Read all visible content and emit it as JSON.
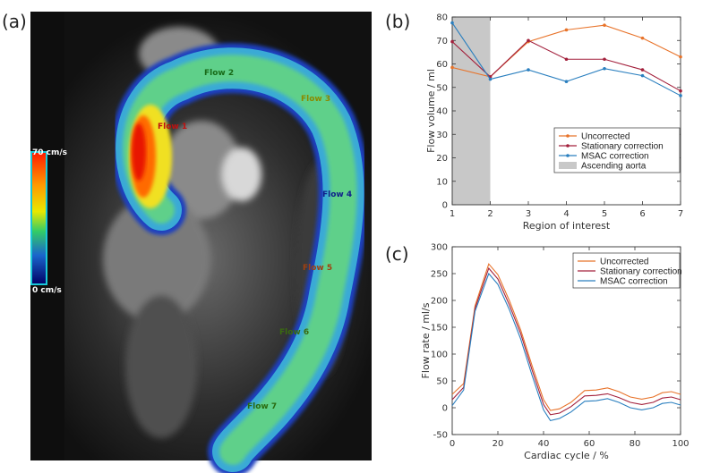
{
  "panel_labels": {
    "a": "(a)",
    "b": "(b)",
    "c": "(c)"
  },
  "mri": {
    "scale_max": "70 cm/s",
    "scale_min": "0 cm/s",
    "flow_labels": [
      "Flow 1",
      "Flow 2",
      "Flow 3",
      "Flow 4",
      "Flow 5",
      "Flow 6",
      "Flow 7"
    ]
  },
  "colors": {
    "uncorrected": "#e8732a",
    "stationary": "#a3203c",
    "msac": "#2a7fbf",
    "ascending": "#c8c8c8"
  },
  "chart_data": [
    {
      "type": "line",
      "panel": "b",
      "xlabel": "Region of interest",
      "ylabel": "Flow volume / ml",
      "xlim": [
        1,
        7
      ],
      "ylim": [
        0,
        80
      ],
      "x": [
        1,
        2,
        3,
        4,
        5,
        6,
        7
      ],
      "xticks": [
        1,
        2,
        3,
        4,
        5,
        6,
        7
      ],
      "yticks": [
        0,
        10,
        20,
        30,
        40,
        50,
        60,
        70,
        80
      ],
      "shaded_region": {
        "name": "Ascending aorta",
        "x": [
          1,
          2
        ]
      },
      "legend": "center-right",
      "series": [
        {
          "name": "Uncorrected",
          "values": [
            58.5,
            54.5,
            69.5,
            74.5,
            76.5,
            71,
            63
          ]
        },
        {
          "name": "Stationary correction",
          "values": [
            69.5,
            54.5,
            70,
            62,
            62,
            57.5,
            48.5
          ]
        },
        {
          "name": "MSAC correction",
          "values": [
            77.5,
            53.5,
            57.5,
            52.5,
            58,
            55,
            46.5
          ]
        }
      ]
    },
    {
      "type": "line",
      "panel": "c",
      "xlabel": "Cardiac cycle / %",
      "ylabel": "Flow rate / ml/s",
      "xlim": [
        0,
        100
      ],
      "ylim": [
        -50,
        300
      ],
      "xticks": [
        0,
        20,
        40,
        60,
        80,
        100
      ],
      "yticks": [
        -50,
        0,
        50,
        100,
        150,
        200,
        250,
        300
      ],
      "legend": "top-right",
      "x": [
        0,
        5,
        10,
        16,
        20,
        25,
        30,
        35,
        40,
        43,
        47,
        52,
        58,
        63,
        68,
        73,
        78,
        83,
        88,
        92,
        96,
        100
      ],
      "series": [
        {
          "name": "Uncorrected",
          "values": [
            25,
            45,
            190,
            268,
            248,
            200,
            145,
            78,
            15,
            -5,
            -2,
            10,
            32,
            33,
            37,
            30,
            20,
            16,
            20,
            28,
            30,
            25
          ]
        },
        {
          "name": "Stationary correction",
          "values": [
            15,
            38,
            185,
            260,
            240,
            192,
            138,
            70,
            6,
            -13,
            -10,
            2,
            22,
            23,
            26,
            19,
            10,
            6,
            10,
            18,
            20,
            15
          ]
        },
        {
          "name": "MSAC correction",
          "values": [
            4,
            33,
            180,
            250,
            230,
            183,
            128,
            60,
            -4,
            -24,
            -20,
            -8,
            12,
            13,
            17,
            10,
            0,
            -4,
            0,
            8,
            10,
            5
          ]
        }
      ]
    }
  ]
}
